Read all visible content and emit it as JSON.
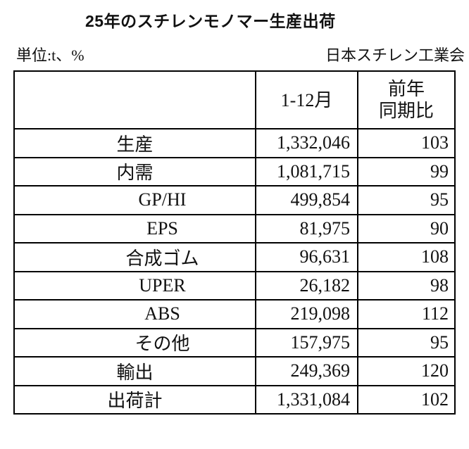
{
  "page": {
    "title": "25年のスチレンモノマー生産出荷",
    "unit_note": "単位:t、%",
    "organization": "日本スチレン工業会"
  },
  "table": {
    "header": {
      "item_label": "",
      "period": "1-12月",
      "yoy": "前年\n同期比"
    },
    "rows": [
      {
        "label": "生産",
        "value": "1,332,046",
        "yoy": "103",
        "indent": false
      },
      {
        "label": "内需",
        "value": "1,081,715",
        "yoy": "99",
        "indent": false
      },
      {
        "label": "GP/HI",
        "value": "499,854",
        "yoy": "95",
        "indent": true
      },
      {
        "label": "EPS",
        "value": "81,975",
        "yoy": "90",
        "indent": true
      },
      {
        "label": "合成ゴム",
        "value": "96,631",
        "yoy": "108",
        "indent": true
      },
      {
        "label": "UPER",
        "value": "26,182",
        "yoy": "98",
        "indent": true
      },
      {
        "label": "ABS",
        "value": "219,098",
        "yoy": "112",
        "indent": true
      },
      {
        "label": "その他",
        "value": "157,975",
        "yoy": "95",
        "indent": true
      },
      {
        "label": "輸出",
        "value": "249,369",
        "yoy": "120",
        "indent": false
      },
      {
        "label": "出荷計",
        "value": "1,331,084",
        "yoy": "102",
        "indent": false
      }
    ]
  }
}
